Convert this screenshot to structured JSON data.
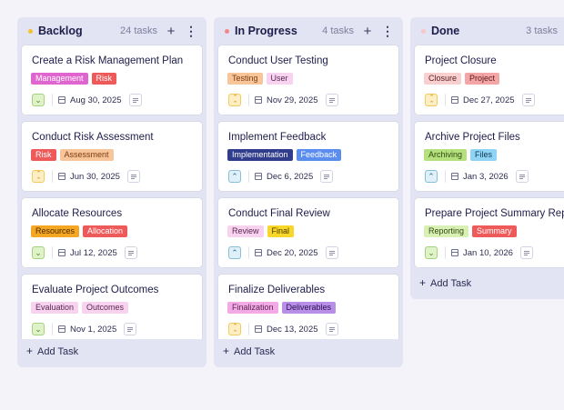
{
  "columns": [
    {
      "title": "Backlog",
      "count": "24 tasks",
      "dot": "#f5c12a",
      "add_label": "Add Task",
      "cards": [
        {
          "title": "Create a Risk Management Plan",
          "tags": [
            {
              "label": "Management",
              "bg": "#e066cf",
              "fg": "#ffffff"
            },
            {
              "label": "Risk",
              "bg": "#ee5a5a",
              "fg": "#ffffff"
            }
          ],
          "priority": "low",
          "date": "Aug 30, 2025"
        },
        {
          "title": "Conduct Risk Assessment",
          "tags": [
            {
              "label": "Risk",
              "bg": "#ee5a5a",
              "fg": "#ffffff"
            },
            {
              "label": "Assessment",
              "bg": "#f8c49a",
              "fg": "#7a3d10"
            }
          ],
          "priority": "high",
          "date": "Jun 30, 2025"
        },
        {
          "title": "Allocate Resources",
          "tags": [
            {
              "label": "Resources",
              "bg": "#f5a623",
              "fg": "#4a2c00"
            },
            {
              "label": "Allocation",
              "bg": "#ee5a5a",
              "fg": "#ffffff"
            }
          ],
          "priority": "low",
          "date": "Jul 12, 2025"
        },
        {
          "title": "Evaluate Project Outcomes",
          "tags": [
            {
              "label": "Evaluation",
              "bg": "#f8d3ef",
              "fg": "#5b2752"
            },
            {
              "label": "Outcomes",
              "bg": "#f8d3ef",
              "fg": "#5b2752"
            }
          ],
          "priority": "low",
          "date": "Nov 1, 2025"
        }
      ]
    },
    {
      "title": "In Progress",
      "count": "4 tasks",
      "dot": "#f08a8a",
      "add_label": "Add Task",
      "cards": [
        {
          "title": "Conduct User Testing",
          "tags": [
            {
              "label": "Testing",
              "bg": "#f8c49a",
              "fg": "#7a3d10"
            },
            {
              "label": "User",
              "bg": "#f8d3ef",
              "fg": "#5b2752"
            }
          ],
          "priority": "high",
          "date": "Nov 29, 2025"
        },
        {
          "title": "Implement Feedback",
          "tags": [
            {
              "label": "Implementation",
              "bg": "#2f3d8c",
              "fg": "#ffffff"
            },
            {
              "label": "Feedback",
              "bg": "#5b8def",
              "fg": "#ffffff"
            }
          ],
          "priority": "medium",
          "date": "Dec 6, 2025"
        },
        {
          "title": "Conduct Final Review",
          "tags": [
            {
              "label": "Review",
              "bg": "#f8d3ef",
              "fg": "#5b2752"
            },
            {
              "label": "Final",
              "bg": "#f8d62a",
              "fg": "#4a3a00"
            }
          ],
          "priority": "medium",
          "date": "Dec 20, 2025"
        },
        {
          "title": "Finalize Deliverables",
          "tags": [
            {
              "label": "Finalization",
              "bg": "#f2a9e6",
              "fg": "#5b2752"
            },
            {
              "label": "Deliverables",
              "bg": "#b88ee8",
              "fg": "#2c1250"
            }
          ],
          "priority": "high",
          "date": "Dec 13, 2025"
        }
      ]
    },
    {
      "title": "Done",
      "count": "3 tasks",
      "dot": "#f6c7c7",
      "add_label": "Add Task",
      "cards": [
        {
          "title": "Project Closure",
          "tags": [
            {
              "label": "Closure",
              "bg": "#f8d0d0",
              "fg": "#5b2020"
            },
            {
              "label": "Project",
              "bg": "#f4a6a6",
              "fg": "#5b1a1a"
            }
          ],
          "priority": "high",
          "date": "Dec 27, 2025"
        },
        {
          "title": "Archive Project Files",
          "tags": [
            {
              "label": "Archiving",
              "bg": "#b4e07e",
              "fg": "#2f4a10"
            },
            {
              "label": "Files",
              "bg": "#8fd3f5",
              "fg": "#0f3a52"
            }
          ],
          "priority": "medium",
          "date": "Jan 3, 2026"
        },
        {
          "title": "Prepare Project Summary Report",
          "tags": [
            {
              "label": "Reporting",
              "bg": "#d9f0b4",
              "fg": "#2f4a10"
            },
            {
              "label": "Summary",
              "bg": "#ee5a5a",
              "fg": "#ffffff"
            }
          ],
          "priority": "low",
          "date": "Jan 10, 2026"
        }
      ]
    }
  ]
}
